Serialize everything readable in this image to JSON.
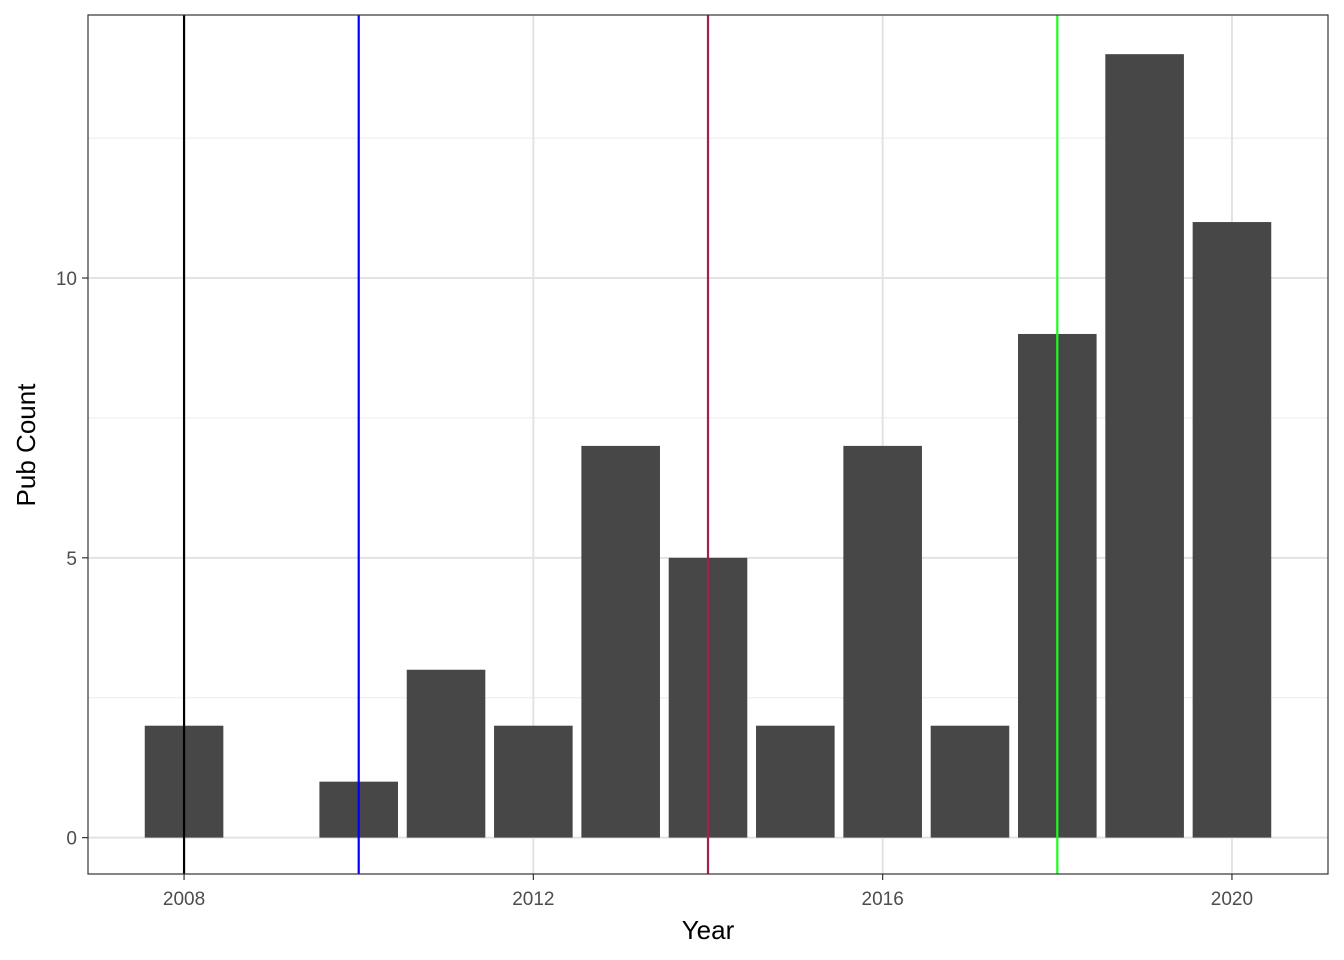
{
  "chart_data": {
    "type": "bar",
    "xlabel": "Year",
    "ylabel": "Pub Count",
    "x": [
      2008,
      2010,
      2011,
      2012,
      2013,
      2014,
      2015,
      2016,
      2017,
      2018,
      2019,
      2020
    ],
    "values": [
      2,
      1,
      3,
      2,
      7,
      5,
      2,
      7,
      2,
      9,
      14,
      11
    ],
    "xlim": [
      2006.9,
      2021.1
    ],
    "ylim": [
      -0.65,
      14.7
    ],
    "x_ticks": [
      2008,
      2012,
      2016,
      2020
    ],
    "x_tick_labels": [
      "2008",
      "2012",
      "2016",
      "2020"
    ],
    "y_ticks": [
      0,
      5,
      10
    ],
    "y_tick_labels": [
      "0",
      "5",
      "10"
    ],
    "grid": true,
    "bar_color": "#474747",
    "vlines": [
      {
        "x": 2008,
        "color": "#000000"
      },
      {
        "x": 2010,
        "color": "#0000ff"
      },
      {
        "x": 2014,
        "color": "#a3204f"
      },
      {
        "x": 2018,
        "color": "#1aff1a"
      }
    ]
  }
}
